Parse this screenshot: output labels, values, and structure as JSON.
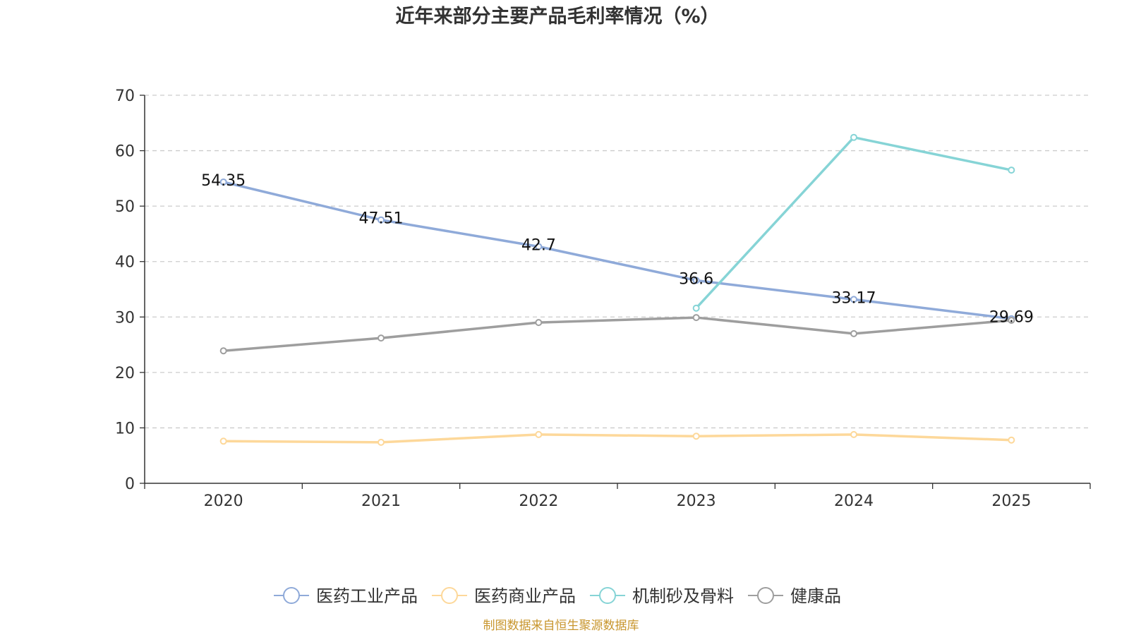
{
  "chart_data": {
    "type": "line",
    "title": "近年来部分主要产品毛利率情况（%）",
    "xlabel": "",
    "ylabel": "",
    "categories": [
      "2020",
      "2021",
      "2022",
      "2023",
      "2024",
      "2025"
    ],
    "ylim": [
      0,
      70
    ],
    "yticks": [
      0,
      10,
      20,
      30,
      40,
      50,
      60,
      70
    ],
    "grid": true,
    "legend_position": "bottom",
    "series": [
      {
        "name": "医药工业产品",
        "color": "#8faad9",
        "values": [
          54.35,
          47.51,
          42.7,
          36.6,
          33.17,
          29.69
        ],
        "show_labels": true
      },
      {
        "name": "医药商业产品",
        "color": "#fdd89a",
        "values": [
          7.6,
          7.4,
          8.8,
          8.5,
          8.8,
          7.8
        ],
        "show_labels": false
      },
      {
        "name": "机制砂及骨料",
        "color": "#86d4d6",
        "values": [
          null,
          null,
          null,
          31.6,
          62.4,
          56.5
        ],
        "show_labels": false
      },
      {
        "name": "健康品",
        "color": "#9e9e9e",
        "values": [
          23.9,
          26.2,
          29.0,
          29.9,
          27.0,
          29.4
        ],
        "show_labels": false
      }
    ]
  },
  "source": "制图数据来自恒生聚源数据库"
}
